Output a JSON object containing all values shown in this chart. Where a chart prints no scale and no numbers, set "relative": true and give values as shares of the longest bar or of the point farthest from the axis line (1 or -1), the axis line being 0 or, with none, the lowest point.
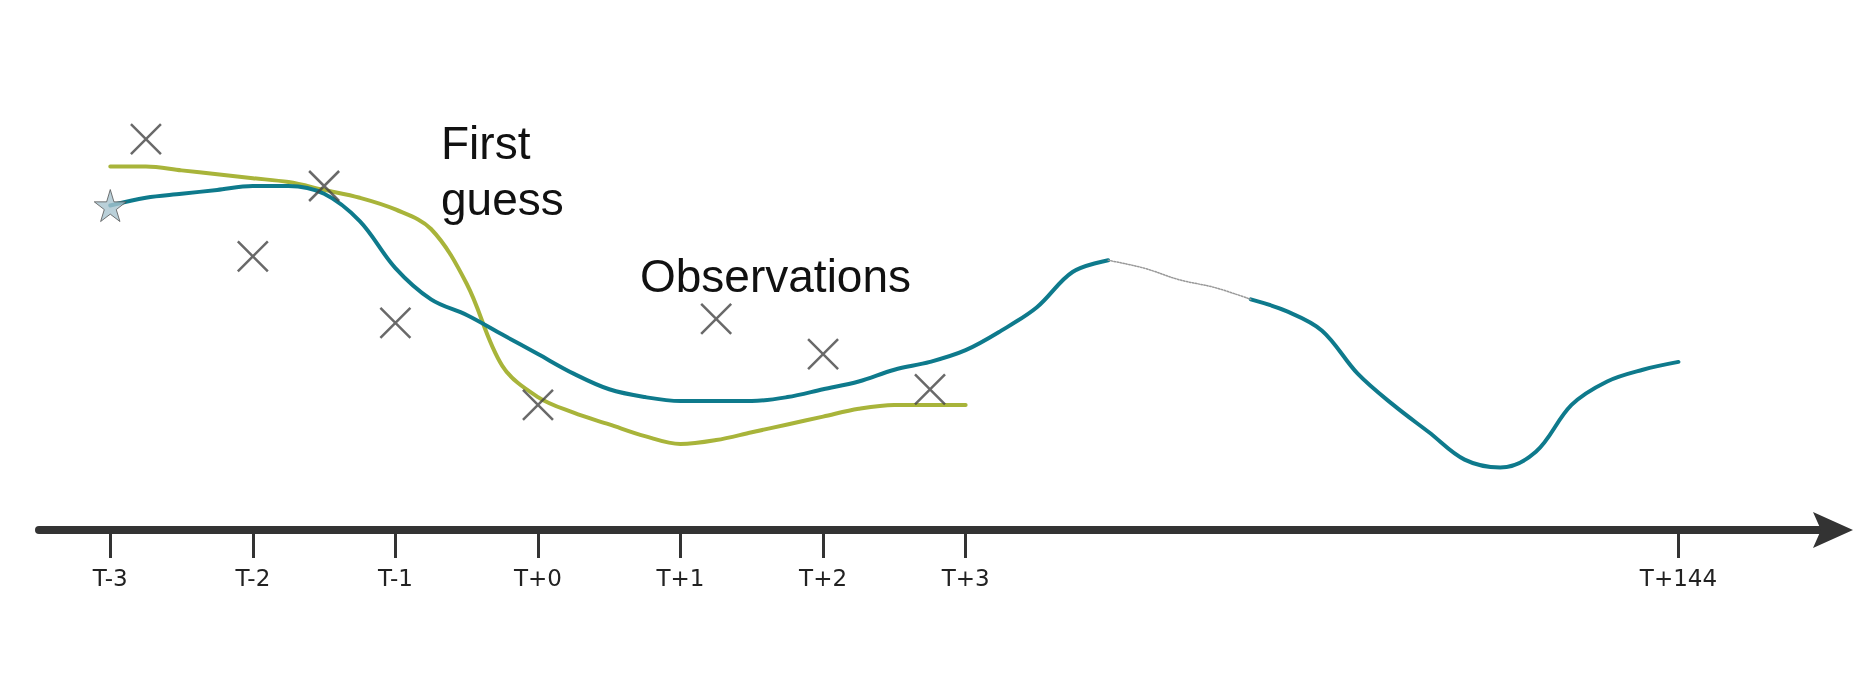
{
  "chart_data": {
    "type": "line",
    "relative": true,
    "categories": [
      null,
      null,
      "T-3",
      null,
      null,
      null,
      "T-2",
      null,
      null,
      null,
      "T-1",
      null,
      null,
      null,
      "T+0",
      null,
      null,
      null,
      "T+1",
      null,
      null,
      null,
      "T+2",
      null,
      null,
      null,
      "T+3",
      null,
      null,
      null,
      null,
      null,
      null,
      null,
      null,
      null,
      null,
      null,
      null,
      null,
      null,
      null,
      null,
      null,
      null,
      null,
      "T+144",
      null,
      null,
      null,
      null
    ],
    "grid": false,
    "series": [
      {
        "color": "#a8b43a",
        "marker": "none",
        "line_style": "solid",
        "values": [
          null,
          null,
          0.93,
          0.93,
          0.92,
          0.91,
          0.9,
          0.89,
          0.87,
          0.85,
          0.82,
          0.77,
          0.63,
          0.42,
          0.34,
          0.3,
          0.27,
          0.24,
          0.22,
          0.23,
          0.25,
          0.27,
          0.29,
          0.31,
          0.32,
          0.32,
          0.32,
          null,
          null,
          null,
          null,
          null,
          null,
          null,
          null,
          null,
          null,
          null,
          null,
          null,
          null,
          null,
          null,
          null,
          null,
          null,
          null,
          null,
          null,
          null,
          null
        ]
      },
      {
        "color": "#0e7a8c",
        "marker": "none",
        "line_style": "solid",
        "values": [
          null,
          null,
          0.83,
          0.85,
          0.86,
          0.87,
          0.88,
          0.88,
          0.86,
          0.79,
          0.67,
          0.59,
          0.55,
          0.5,
          0.45,
          0.4,
          0.36,
          0.34,
          0.33,
          0.33,
          0.33,
          0.34,
          0.36,
          0.38,
          0.41,
          0.43,
          0.46,
          0.51,
          0.57,
          0.66,
          0.69,
          null,
          null,
          null,
          0.59,
          0.56,
          0.51,
          0.4,
          0.32,
          0.25,
          0.18,
          0.16,
          0.2,
          0.32,
          0.38,
          0.41,
          0.43,
          null,
          null,
          null,
          null
        ]
      },
      {
        "color": "#999999",
        "marker": "none",
        "line_style": "dotted",
        "values": [
          null,
          null,
          null,
          null,
          null,
          null,
          null,
          null,
          null,
          null,
          null,
          null,
          null,
          null,
          null,
          null,
          null,
          null,
          null,
          null,
          null,
          null,
          null,
          null,
          null,
          null,
          null,
          null,
          null,
          null,
          0.69,
          0.67,
          0.64,
          0.62,
          0.59,
          null,
          null,
          null,
          null,
          null,
          null,
          null,
          null,
          null,
          null,
          null,
          null,
          null,
          null,
          null,
          null
        ]
      },
      {
        "type": "scatter",
        "color": "#444444",
        "marker": "cross",
        "values": [
          null,
          null,
          null,
          1.0,
          null,
          null,
          0.7,
          null,
          0.88,
          null,
          0.53,
          null,
          null,
          null,
          0.32,
          null,
          null,
          null,
          null,
          0.54,
          null,
          null,
          0.45,
          null,
          null,
          0.36,
          null,
          null,
          null,
          null,
          null,
          null,
          null,
          null,
          null,
          null,
          null,
          null,
          null,
          null,
          null,
          null,
          null,
          null,
          null,
          null,
          null,
          null,
          null,
          null,
          null
        ]
      },
      {
        "type": "scatter",
        "color": "#a9c4d0",
        "marker": "star",
        "values": [
          null,
          null,
          0.83,
          null,
          null,
          null,
          null,
          null,
          null,
          null,
          null,
          null,
          null,
          null,
          null,
          null,
          null,
          null,
          null,
          null,
          null,
          null,
          null,
          null,
          null,
          null,
          null,
          null,
          null,
          null,
          null,
          null,
          null,
          null,
          null,
          null,
          null,
          null,
          null,
          null,
          null,
          null,
          null,
          null,
          null,
          null,
          null,
          null,
          null,
          null,
          null
        ]
      }
    ],
    "annotations": [
      "First guess",
      "Observations"
    ]
  }
}
